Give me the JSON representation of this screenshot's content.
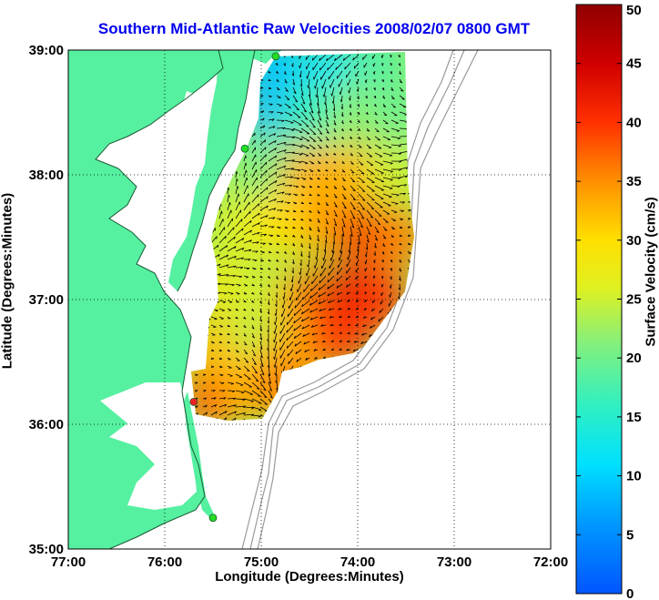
{
  "title": "Southern Mid-Atlantic Raw Velocities 2008/02/07 0800 GMT",
  "colorbar_label": "Surface Velocity (cm/s)",
  "colors": {
    "land": "#55f0a0",
    "water": "#ffffff",
    "contour": "#9a9a9a",
    "arrow": "#000000",
    "site_green": "#22dd22",
    "site_red": "#ee2222"
  },
  "chart_data": {
    "type": "heatmap",
    "title": "Southern Mid-Atlantic Raw Velocities 2008/02/07 0800 GMT",
    "xlabel": "Longitude (Degrees:Minutes)",
    "ylabel": "Latitude (Degrees:Minutes)",
    "xlim": [
      -77,
      -72
    ],
    "ylim": [
      35,
      39
    ],
    "x_ticks": [
      {
        "value": -77,
        "label": "77:00"
      },
      {
        "value": -76,
        "label": "76:00"
      },
      {
        "value": -75,
        "label": "75:00"
      },
      {
        "value": -74,
        "label": "74:00"
      },
      {
        "value": -73,
        "label": "73:00"
      },
      {
        "value": -72,
        "label": "72:00"
      }
    ],
    "y_ticks": [
      {
        "value": 39,
        "label": "39:00"
      },
      {
        "value": 38,
        "label": "38:00"
      },
      {
        "value": 37,
        "label": "37:00"
      },
      {
        "value": 36,
        "label": "36:00"
      },
      {
        "value": 35,
        "label": "35:00"
      }
    ],
    "grid": true,
    "colorbar": {
      "label": "Surface Velocity (cm/s)",
      "range": [
        0,
        50
      ],
      "ticks": [
        0,
        5,
        10,
        15,
        20,
        25,
        30,
        35,
        40,
        45,
        50
      ],
      "colormap": "jet"
    },
    "radar_sites": [
      {
        "lon": -74.85,
        "lat": 38.95,
        "color": "green"
      },
      {
        "lon": -75.17,
        "lat": 38.21,
        "color": "green"
      },
      {
        "lon": -75.7,
        "lat": 36.18,
        "color": "red"
      },
      {
        "lon": -75.5,
        "lat": 35.25,
        "color": "green"
      }
    ],
    "speed_field": [
      {
        "lon": -74.9,
        "lat": 38.9,
        "speed": 9
      },
      {
        "lon": -74.3,
        "lat": 38.9,
        "speed": 12
      },
      {
        "lon": -73.8,
        "lat": 38.9,
        "speed": 18
      },
      {
        "lon": -74.9,
        "lat": 38.5,
        "speed": 8
      },
      {
        "lon": -74.5,
        "lat": 38.5,
        "speed": 16
      },
      {
        "lon": -74.0,
        "lat": 38.5,
        "speed": 22
      },
      {
        "lon": -73.6,
        "lat": 38.5,
        "speed": 20
      },
      {
        "lon": -74.9,
        "lat": 38.1,
        "speed": 20
      },
      {
        "lon": -74.5,
        "lat": 38.0,
        "speed": 33
      },
      {
        "lon": -74.0,
        "lat": 38.0,
        "speed": 33
      },
      {
        "lon": -73.6,
        "lat": 38.0,
        "speed": 25
      },
      {
        "lon": -75.2,
        "lat": 37.6,
        "speed": 26
      },
      {
        "lon": -74.8,
        "lat": 37.6,
        "speed": 30
      },
      {
        "lon": -74.3,
        "lat": 37.6,
        "speed": 34
      },
      {
        "lon": -73.9,
        "lat": 37.5,
        "speed": 42
      },
      {
        "lon": -73.6,
        "lat": 37.5,
        "speed": 36
      },
      {
        "lon": -75.4,
        "lat": 37.1,
        "speed": 28
      },
      {
        "lon": -75.0,
        "lat": 37.0,
        "speed": 25
      },
      {
        "lon": -74.5,
        "lat": 37.0,
        "speed": 36
      },
      {
        "lon": -74.1,
        "lat": 37.0,
        "speed": 45
      },
      {
        "lon": -73.8,
        "lat": 37.0,
        "speed": 40
      },
      {
        "lon": -75.5,
        "lat": 36.6,
        "speed": 32
      },
      {
        "lon": -75.0,
        "lat": 36.6,
        "speed": 24
      },
      {
        "lon": -74.6,
        "lat": 36.6,
        "speed": 33
      },
      {
        "lon": -74.2,
        "lat": 36.7,
        "speed": 40
      },
      {
        "lon": -75.5,
        "lat": 36.2,
        "speed": 38
      },
      {
        "lon": -75.1,
        "lat": 36.3,
        "speed": 32
      },
      {
        "lon": -74.8,
        "lat": 36.3,
        "speed": 36
      }
    ]
  }
}
